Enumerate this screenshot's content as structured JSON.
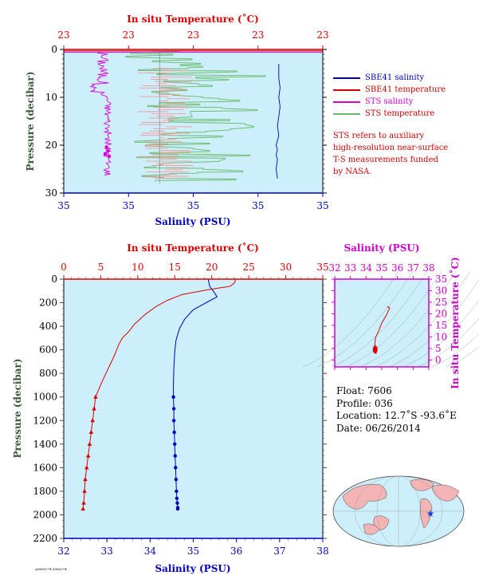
{
  "colors": {
    "bg": "#cdeefb",
    "salinity": "#0000bb",
    "temperature": "#dd0000",
    "sts_salinity": "#dd00dd",
    "sts_temperature": "#66bb66",
    "sts_temperature_pink": "#f29999",
    "pressure_axis": "#3a5a3a",
    "ts_axis": "#cc00cc",
    "annot": "#cc0000"
  },
  "top_panel": {
    "temp_title": "In situ Temperature (˚C)",
    "temp_ticks": [
      "23",
      "23",
      "23",
      "23",
      "23"
    ],
    "sal_label": "Salinity (PSU)",
    "sal_ticks": [
      "35",
      "35",
      "35",
      "35",
      "35"
    ],
    "p_label": "Pressure (decibar)",
    "p_ticks": [
      "0",
      "10",
      "20",
      "30"
    ]
  },
  "legend": [
    {
      "label": "SBE41 salinity",
      "color": "#0000bb"
    },
    {
      "label": "SBE41 temperature",
      "color": "#dd0000"
    },
    {
      "label": "STS salinity",
      "color": "#dd00dd"
    },
    {
      "label": "STS temperature",
      "color": "#66bb66"
    }
  ],
  "note_lines": [
    "STS refers to auxiliary",
    "high-resolution near-surface",
    "T-S measurements funded",
    "by NASA."
  ],
  "bottom_panel": {
    "temp_title": "In situ Temperature (˚C)",
    "temp_ticks": [
      "0",
      "5",
      "10",
      "15",
      "20",
      "25",
      "30",
      "35"
    ],
    "sal_label": "Salinity (PSU)",
    "sal_ticks": [
      "32",
      "33",
      "34",
      "35",
      "36",
      "37",
      "38"
    ],
    "p_label": "Pressure (decibar)",
    "p_ticks": [
      "0",
      "200",
      "400",
      "600",
      "800",
      "1000",
      "1200",
      "1400",
      "1600",
      "1800",
      "2000",
      "2200"
    ]
  },
  "ts_panel": {
    "sal_title": "Salinity (PSU)",
    "sal_ticks": [
      "32",
      "33",
      "34",
      "35",
      "36",
      "37",
      "38"
    ],
    "temp_label": "In situ Temperature (˚C)",
    "temp_ticks": [
      "0",
      "5",
      "10",
      "15",
      "20",
      "25",
      "30",
      "35"
    ]
  },
  "info": {
    "float": "Float:  7606",
    "profile": "Profile:  036",
    "location": "Location:  12.7˚S  -93.6˚E",
    "date": "Date:  06/26/2014"
  },
  "stamp": "A9806774 6960374",
  "chart_data": [
    {
      "type": "line",
      "title": "",
      "note": "Top panel: near-surface 0-30 dbar; salinity and temperature axes have all ticks printed as 35 and 23",
      "xlabel": "Salinity (PSU)",
      "x2label": "In situ Temperature (˚C)",
      "ylabel": "Pressure (decibar)",
      "ylim": [
        30,
        0
      ],
      "series": [
        {
          "name": "SBE41 salinity",
          "x_frac": [
            0.83,
            0.83,
            0.835,
            0.83,
            0.835,
            0.83,
            0.825,
            0.83,
            0.82,
            0.825,
            0.82,
            0.825,
            0.82,
            0.825
          ],
          "pressure": [
            3,
            6,
            8,
            10,
            12,
            14,
            16,
            18,
            20,
            21,
            22,
            23,
            25,
            27
          ]
        },
        {
          "name": "SBE41 temperature",
          "x_frac": [
            1.0,
            1.0
          ],
          "pressure": [
            0.2,
            0.4
          ]
        }
      ]
    },
    {
      "type": "line",
      "title": "",
      "xlabel": "Salinity (PSU)",
      "x2label": "In situ Temperature (˚C)",
      "ylabel": "Pressure (decibar)",
      "xlim": [
        32,
        38
      ],
      "x2lim": [
        0,
        35
      ],
      "ylim": [
        2200,
        0
      ],
      "series": [
        {
          "name": "SBE41 salinity",
          "salinity": [
            35.35,
            35.36,
            35.38,
            35.5,
            35.55,
            35.3,
            35.0,
            34.8,
            34.68,
            34.6,
            34.57,
            34.55,
            34.54,
            34.54,
            34.55,
            34.55,
            34.56,
            34.57,
            34.58,
            34.59,
            34.6,
            34.61,
            34.62,
            34.63,
            34.64,
            34.64
          ],
          "pressure": [
            5,
            30,
            60,
            120,
            150,
            200,
            260,
            340,
            420,
            520,
            620,
            760,
            880,
            1000,
            1100,
            1200,
            1300,
            1400,
            1500,
            1600,
            1700,
            1800,
            1860,
            1900,
            1940,
            1950
          ]
        },
        {
          "name": "SBE41 temperature",
          "temperature": [
            23.2,
            23.1,
            22.5,
            19.5,
            16,
            14,
            12.5,
            11,
            9.6,
            8.7,
            7.9,
            7.4,
            6.9,
            6.0,
            5.1,
            4.3,
            4.1,
            3.9,
            3.7,
            3.5,
            3.3,
            3.1,
            2.9,
            2.8,
            2.7,
            2.6
          ],
          "pressure": [
            5,
            30,
            60,
            90,
            130,
            180,
            230,
            300,
            380,
            450,
            500,
            560,
            640,
            760,
            880,
            1000,
            1100,
            1200,
            1300,
            1400,
            1500,
            1600,
            1700,
            1800,
            1900,
            1950
          ]
        }
      ]
    },
    {
      "type": "scatter",
      "title": "",
      "note": "T-S diagram",
      "xlabel": "Salinity (PSU)",
      "ylabel": "In situ Temperature (˚C)",
      "xlim": [
        32,
        38
      ],
      "ylim": [
        -3,
        35
      ],
      "series": [
        {
          "name": "",
          "salinity": [
            35.35,
            35.5,
            35.3,
            35.0,
            34.8,
            34.6,
            34.57,
            34.55,
            34.6,
            34.64
          ],
          "temperature": [
            23.2,
            22.5,
            19.5,
            16,
            12.5,
            9.6,
            7.4,
            6.0,
            4.3,
            2.6
          ]
        }
      ]
    }
  ]
}
